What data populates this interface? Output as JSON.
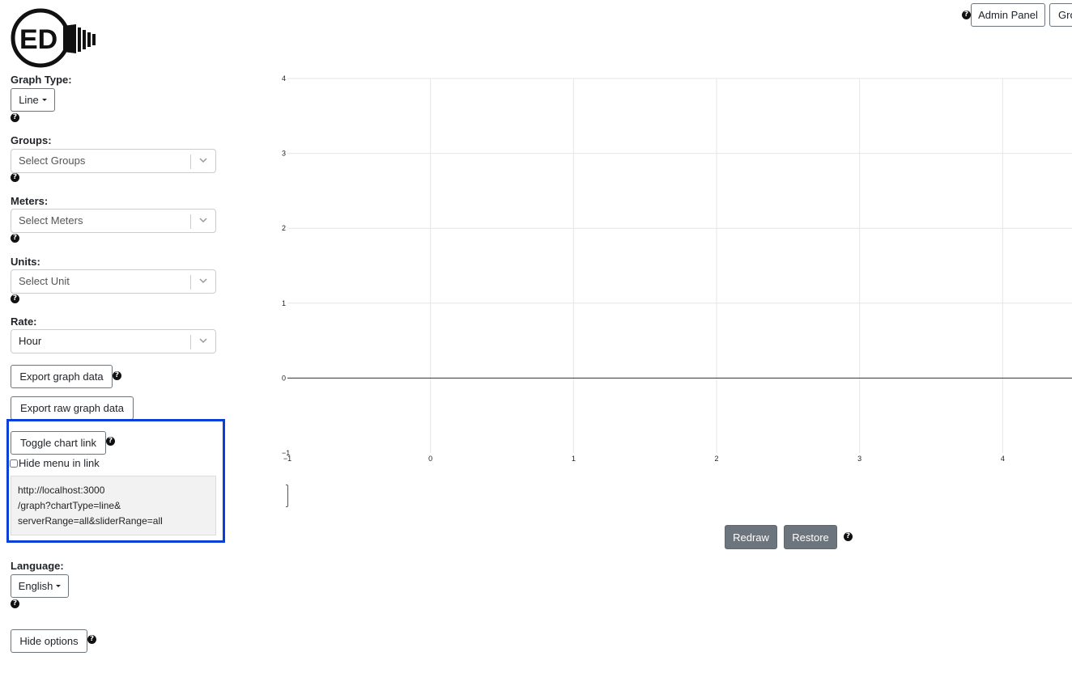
{
  "logo": {
    "text": "ED"
  },
  "header": {
    "admin_panel": "Admin Panel",
    "groups_partial": "Gro"
  },
  "sidebar": {
    "graph_type": {
      "label": "Graph Type:",
      "value": "Line"
    },
    "groups": {
      "label": "Groups:",
      "placeholder": "Select Groups"
    },
    "meters": {
      "label": "Meters:",
      "placeholder": "Select Meters"
    },
    "units": {
      "label": "Units:",
      "placeholder": "Select Unit"
    },
    "rate": {
      "label": "Rate:",
      "value": "Hour"
    },
    "export_graph": "Export graph data",
    "export_raw": "Export raw graph data",
    "toggle_link": "Toggle chart link",
    "hide_menu_label": "Hide menu in link",
    "hide_menu_checked": false,
    "link_lines": [
      "http://localhost:3000",
      "/graph?chartType=line&",
      "serverRange=all&sliderRange=all"
    ],
    "language": {
      "label": "Language:",
      "value": "English"
    },
    "hide_options": "Hide options"
  },
  "help_glyph": "?",
  "chart_data": {
    "type": "line",
    "title": "",
    "xlabel": "",
    "ylabel": "",
    "series": [],
    "xlim": [
      -1,
      5
    ],
    "ylim": [
      -1,
      4
    ],
    "x_ticks": [
      "−1",
      "0",
      "1",
      "2",
      "3",
      "4"
    ],
    "y_ticks": [
      "4",
      "3",
      "2",
      "1",
      "0",
      "−1"
    ],
    "grid": true
  },
  "controls": {
    "redraw": "Redraw",
    "restore": "Restore"
  }
}
